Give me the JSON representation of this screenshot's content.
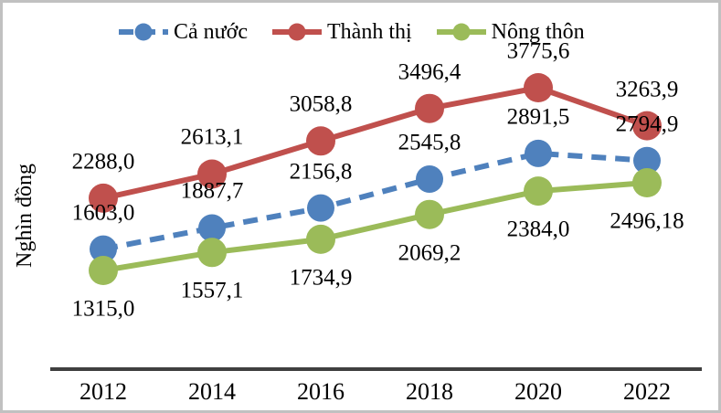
{
  "window": {
    "background": "#ffffff",
    "border_color": "#c1c1c1",
    "axis_color": "#3f3f3f",
    "text_color": "#000000"
  },
  "legend": {
    "items": [
      {
        "key": "ca-nuoc",
        "label": "Cả nước",
        "color": "#4f81bd",
        "line_style": "dashed"
      },
      {
        "key": "thanh-thi",
        "label": "Thành thị",
        "color": "#c0504d",
        "line_style": "solid"
      },
      {
        "key": "nong-thon",
        "label": "Nông thôn",
        "color": "#9bbb59",
        "line_style": "solid"
      }
    ]
  },
  "chart_data": {
    "type": "line",
    "title": "",
    "xlabel": "",
    "ylabel": "Nghìn đồng",
    "categories": [
      "2012",
      "2014",
      "2016",
      "2018",
      "2020",
      "2022"
    ],
    "series": [
      {
        "name": "Cả nước",
        "key": "ca-nuoc",
        "color": "#4f81bd",
        "line_style": "dashed",
        "marker": "circle",
        "values": [
          1603.0,
          1887.7,
          2156.8,
          2545.8,
          2891.5,
          2794.9
        ],
        "labels": [
          "1603,0",
          "1887,7",
          "2156,8",
          "2545,8",
          "2891,5",
          "2794,9"
        ],
        "label_position": "above"
      },
      {
        "name": "Thành thị",
        "key": "thanh-thi",
        "color": "#c0504d",
        "line_style": "solid",
        "marker": "circle",
        "values": [
          2288.0,
          2613.1,
          3058.8,
          3496.4,
          3775.6,
          3263.9
        ],
        "labels": [
          "2288,0",
          "2613,1",
          "3058,8",
          "3496,4",
          "3775,6",
          "3263,9"
        ],
        "label_position": "above"
      },
      {
        "name": "Nông thôn",
        "key": "nong-thon",
        "color": "#9bbb59",
        "line_style": "solid",
        "marker": "circle",
        "values": [
          1315.0,
          1557.1,
          1734.9,
          2069.2,
          2384.0,
          2496.18
        ],
        "labels": [
          "1315,0",
          "1557,1",
          "1734,9",
          "2069,2",
          "2384,0",
          "2496,18"
        ],
        "label_position": "below"
      }
    ],
    "ylim": [
      1315,
      3775.6
    ],
    "grid": false,
    "legend_position": "top",
    "decimal_separator": ","
  }
}
